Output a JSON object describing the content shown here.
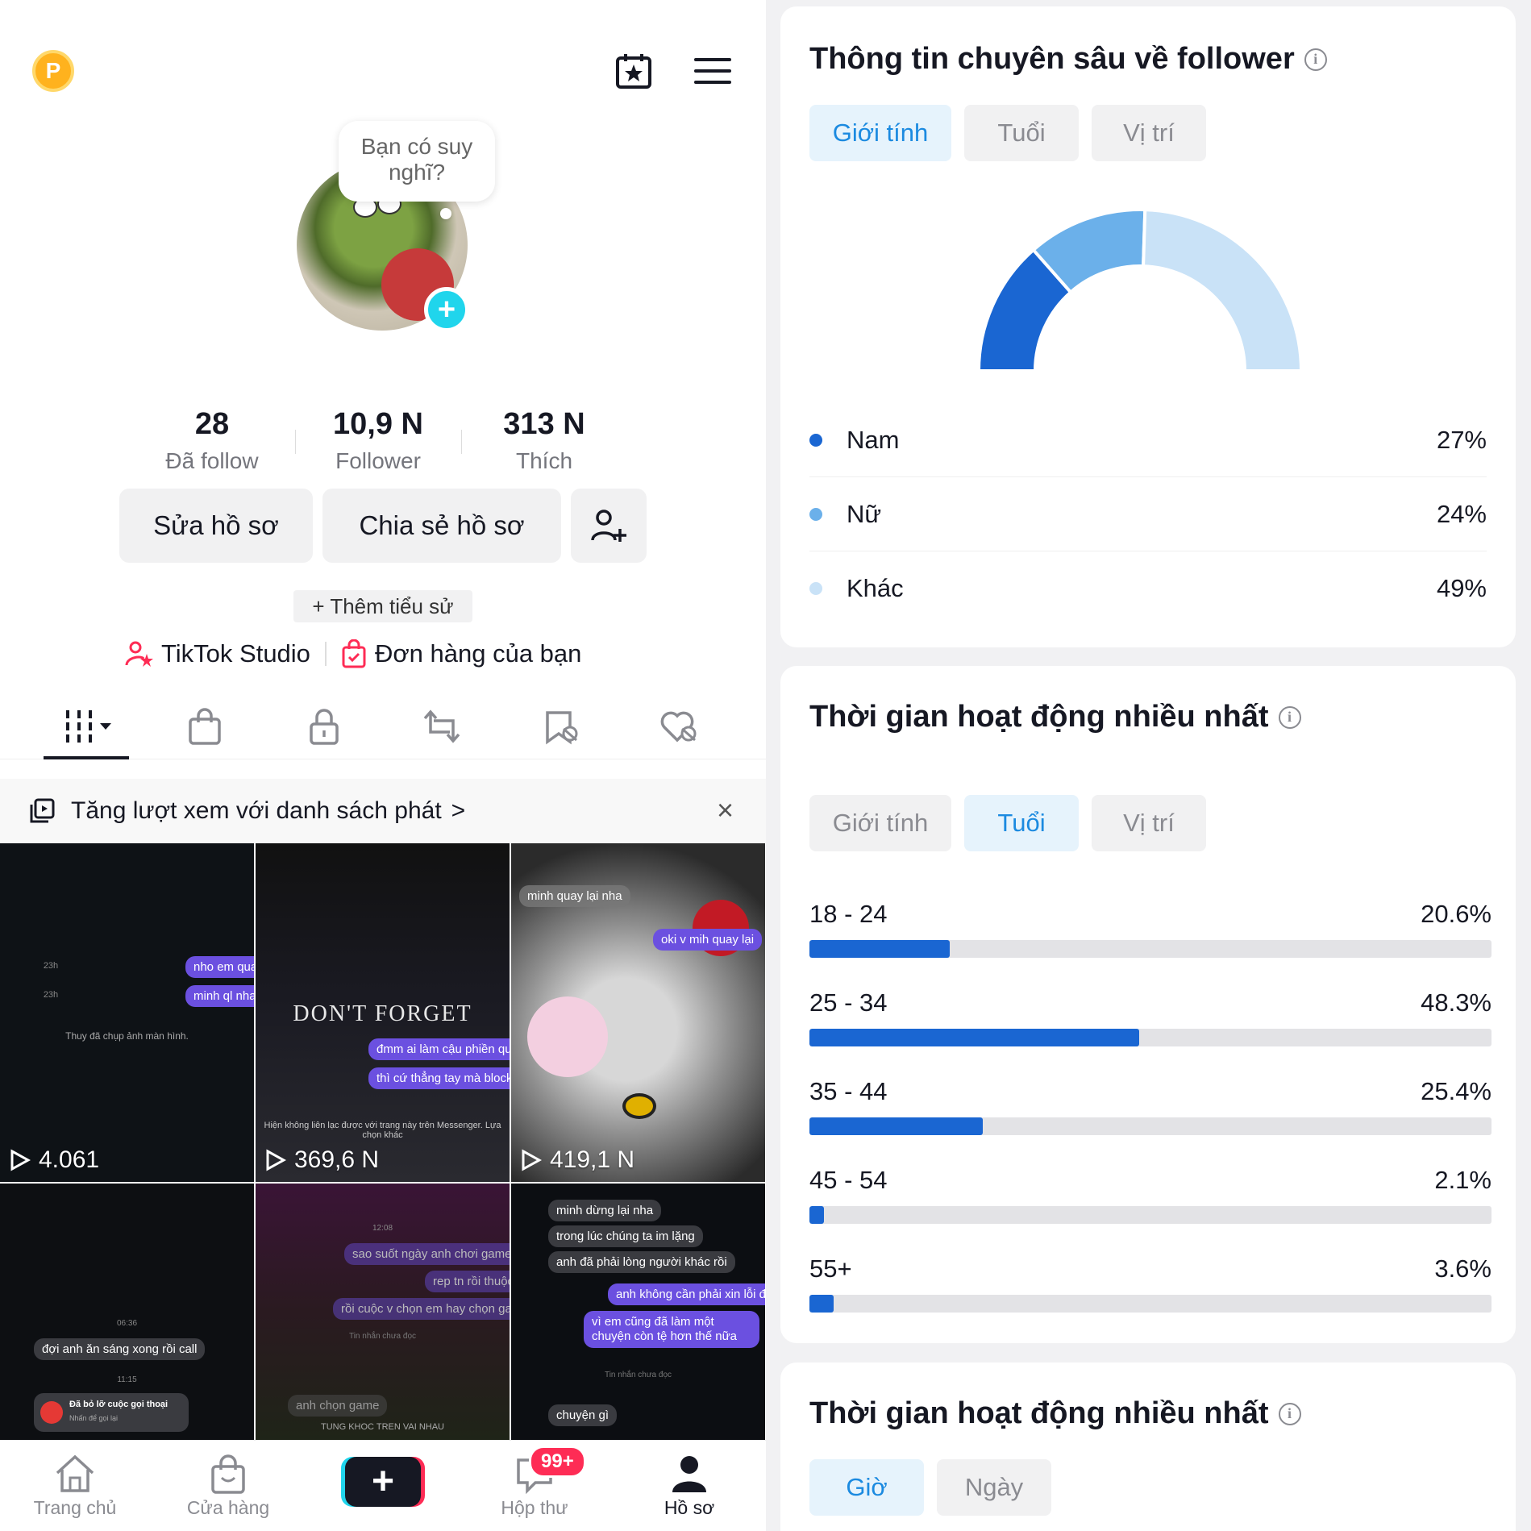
{
  "profile": {
    "coin_letter": "P",
    "bubble_text": "Bạn có suy nghĩ?",
    "stats": [
      {
        "value": "28",
        "label": "Đã follow"
      },
      {
        "value": "10,9 N",
        "label": "Follower"
      },
      {
        "value": "313 N",
        "label": "Thích"
      }
    ],
    "edit_label": "Sửa hồ sơ",
    "share_label": "Chia sẻ hồ sơ",
    "bio_label": "+ Thêm tiểu sử",
    "studio_label": "TikTok Studio",
    "orders_label": "Đơn hàng của bạn",
    "promo_label": "Tăng lượt xem với danh sách phát",
    "promo_chevron": ">",
    "promo_close": "×"
  },
  "videos": [
    {
      "views": "4.061",
      "lines": [
        "nho em qua",
        "minh ql nha",
        "Thuy đã chụp ảnh màn hình."
      ],
      "times": [
        "23h",
        "23h"
      ]
    },
    {
      "views": "369,6 N",
      "lines": [
        "DON'T FORGET",
        "đmm ai làm cậu phiền qua",
        "thì cứ thẳng tay mà block",
        "Hiện không liên lạc được với trang này trên Messenger. Lựa chọn khác"
      ]
    },
    {
      "views": "419,1 N",
      "lines": [
        "minh quay lại nha",
        "oki v mih quay lại"
      ]
    },
    {
      "views": "",
      "lines": [
        "đợi anh ăn sáng xong rồi call",
        "Đã bỏ lỡ cuộc gọi thoại",
        "Nhấn để gọi lại"
      ],
      "times": [
        "06:36",
        "11:15"
      ]
    },
    {
      "views": "",
      "lines": [
        "sao suốt ngày anh chơi game vậy",
        "rep tn rồi thuộc",
        "rồi cuộc v chọn em hay chọn game",
        "Tin nhắn chưa đọc",
        "anh chọn game",
        "TUNG KHOC TREN VAI NHAU"
      ],
      "times": [
        "12:08"
      ]
    },
    {
      "views": "",
      "lines": [
        "minh dừng lại nha",
        "trong lúc chúng ta im lặng",
        "anh đã phải lòng người khác rồi",
        "anh không cần phải xin lỗi đâu",
        "vì em cũng đã làm một chuyện còn tệ hơn thế nữa",
        "Tin nhắn chưa đọc",
        "chuyện gì"
      ]
    }
  ],
  "nav": {
    "home": "Trang chủ",
    "shop": "Cửa hàng",
    "create": "+",
    "inbox": "Hộp thư",
    "inbox_badge": "99+",
    "profile": "Hồ sơ"
  },
  "insights": {
    "title": "Thông tin chuyên sâu về follower",
    "info_icon": "i",
    "tabs": [
      "Giới tính",
      "Tuổi",
      "Vị trí"
    ],
    "active_tab": 0,
    "gender": [
      {
        "label": "Nam",
        "percent": 27,
        "display": "27%",
        "color": "#1a66d2"
      },
      {
        "label": "Nữ",
        "percent": 24,
        "display": "24%",
        "color": "#6bb0ea"
      },
      {
        "label": "Khác",
        "percent": 49,
        "display": "49%",
        "color": "#c9e2f7"
      }
    ]
  },
  "activity": {
    "title": "Thời gian hoạt động nhiều nhất",
    "info_icon": "i",
    "tabs": [
      "Giới tính",
      "Tuổi",
      "Vị trí"
    ],
    "active_tab": 1,
    "ages": [
      {
        "range": "18 - 24",
        "percent": 20.6,
        "display": "20.6%"
      },
      {
        "range": "25 - 34",
        "percent": 48.3,
        "display": "48.3%"
      },
      {
        "range": "35 - 44",
        "percent": 25.4,
        "display": "25.4%"
      },
      {
        "range": "45 - 54",
        "percent": 2.1,
        "display": "2.1%"
      },
      {
        "range": "55+",
        "percent": 3.6,
        "display": "3.6%"
      }
    ]
  },
  "activity2": {
    "title": "Thời gian hoạt động nhiều nhất",
    "info_icon": "i",
    "tabs": [
      "Giờ",
      "Ngày"
    ],
    "active_tab": 0
  },
  "chart_data": {
    "type": "pie",
    "title": "",
    "categories": [
      "Nam",
      "Nữ",
      "Khác"
    ],
    "values": [
      27,
      24,
      49
    ],
    "style": "half-donut",
    "legend": "below"
  },
  "colors": {
    "accent_blue": "#1a66d2",
    "tab_active_text": "#1b8ae0",
    "tiktok_red": "#fe2c55",
    "tiktok_cyan": "#20d5ec"
  }
}
